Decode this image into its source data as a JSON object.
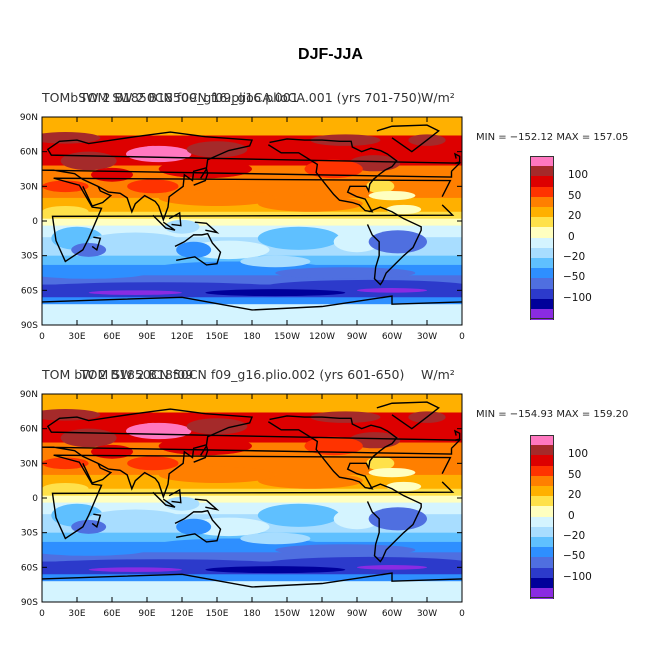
{
  "figure": {
    "title": "DJF-JJA"
  },
  "panels": [
    {
      "title_a": "TOM SW 2 B1850CN f09_g16.plioCA.001 (yrs 701-750)",
      "title_b": "TOMbSW 2 B1850CN f09_g16.plioCA.001",
      "units": "W/m²",
      "min_max": "MIN = −152.12 MAX = 157.05",
      "min": -152.12,
      "max": 157.05
    },
    {
      "title_a": "TOM SW 2 B1850CN f09_g16.plio.002 (yrs 601-650)",
      "title_b": "TOM  bW 2 B1850CN f09",
      "units": "W/m²",
      "min_max": "MIN = −154.93 MAX = 159.20",
      "min": -154.93,
      "max": 159.2
    }
  ],
  "axes": {
    "lat_labels": [
      "90N",
      "60N",
      "30N",
      "0",
      "30S",
      "60S",
      "90S"
    ],
    "lon_labels": [
      "0",
      "30E",
      "60E",
      "90E",
      "120E",
      "150E",
      "180",
      "150W",
      "120W",
      "90W",
      "60W",
      "30W",
      "0"
    ]
  },
  "colorbar": {
    "labels": [
      "100",
      "50",
      "20",
      "0",
      "−20",
      "−50",
      "−100"
    ],
    "colors": [
      "#ff78c0",
      "#a52a2a",
      "#dd0000",
      "#ff3300",
      "#ff7f00",
      "#ffb000",
      "#ffe14a",
      "#ffffc0",
      "#d4f4ff",
      "#a8ddff",
      "#5fc0ff",
      "#2e8fff",
      "#4f6fe0",
      "#2c3acb",
      "#00009a",
      "#8a2be2"
    ]
  }
}
